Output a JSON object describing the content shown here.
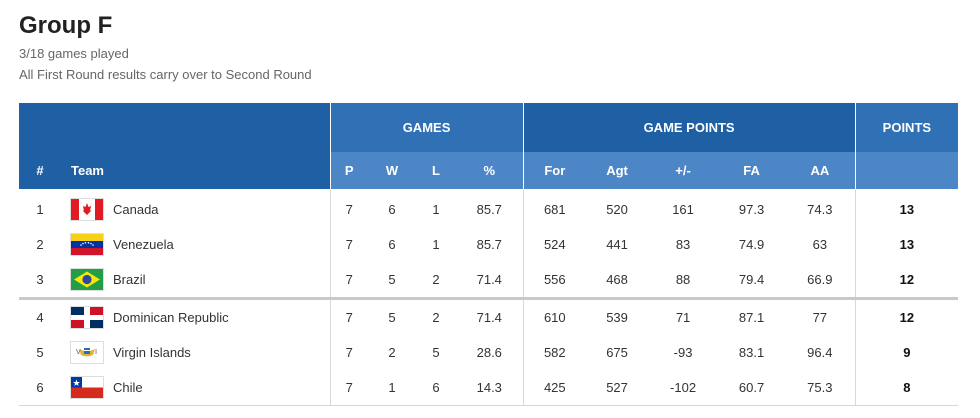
{
  "group": {
    "title": "Group F",
    "games_played": "3/18 games played",
    "note": "All First Round results carry over to Second Round"
  },
  "columns": {
    "games": "GAMES",
    "game_points": "GAME POINTS",
    "points": "POINTS",
    "rank": "#",
    "team": "Team",
    "p": "P",
    "w": "W",
    "l": "L",
    "pct": "%",
    "for": "For",
    "agt": "Agt",
    "diff": "+/-",
    "fa": "FA",
    "aa": "AA"
  },
  "rows": [
    {
      "rank": "1",
      "team": "Canada",
      "flag": "canada-flag-icon",
      "p": "7",
      "w": "6",
      "l": "1",
      "pct": "85.7",
      "for": "681",
      "agt": "520",
      "diff": "161",
      "fa": "97.3",
      "aa": "74.3",
      "pts": "13"
    },
    {
      "rank": "2",
      "team": "Venezuela",
      "flag": "venezuela-flag-icon",
      "p": "7",
      "w": "6",
      "l": "1",
      "pct": "85.7",
      "for": "524",
      "agt": "441",
      "diff": "83",
      "fa": "74.9",
      "aa": "63",
      "pts": "13"
    },
    {
      "rank": "3",
      "team": "Brazil",
      "flag": "brazil-flag-icon",
      "p": "7",
      "w": "5",
      "l": "2",
      "pct": "71.4",
      "for": "556",
      "agt": "468",
      "diff": "88",
      "fa": "79.4",
      "aa": "66.9",
      "pts": "12"
    },
    {
      "rank": "4",
      "team": "Dominican Republic",
      "flag": "dominican-republic-flag-icon",
      "p": "7",
      "w": "5",
      "l": "2",
      "pct": "71.4",
      "for": "610",
      "agt": "539",
      "diff": "71",
      "fa": "87.1",
      "aa": "77",
      "pts": "12"
    },
    {
      "rank": "5",
      "team": "Virgin Islands",
      "flag": "virgin-islands-flag-icon",
      "p": "7",
      "w": "2",
      "l": "5",
      "pct": "28.6",
      "for": "582",
      "agt": "675",
      "diff": "-93",
      "fa": "83.1",
      "aa": "96.4",
      "pts": "9"
    },
    {
      "rank": "6",
      "team": "Chile",
      "flag": "chile-flag-icon",
      "p": "7",
      "w": "1",
      "l": "6",
      "pct": "14.3",
      "for": "425",
      "agt": "527",
      "diff": "-102",
      "fa": "60.7",
      "aa": "75.3",
      "pts": "8"
    }
  ],
  "colors": {
    "header_dark": "#1f5fa4",
    "header_light": "#4d86c7"
  }
}
